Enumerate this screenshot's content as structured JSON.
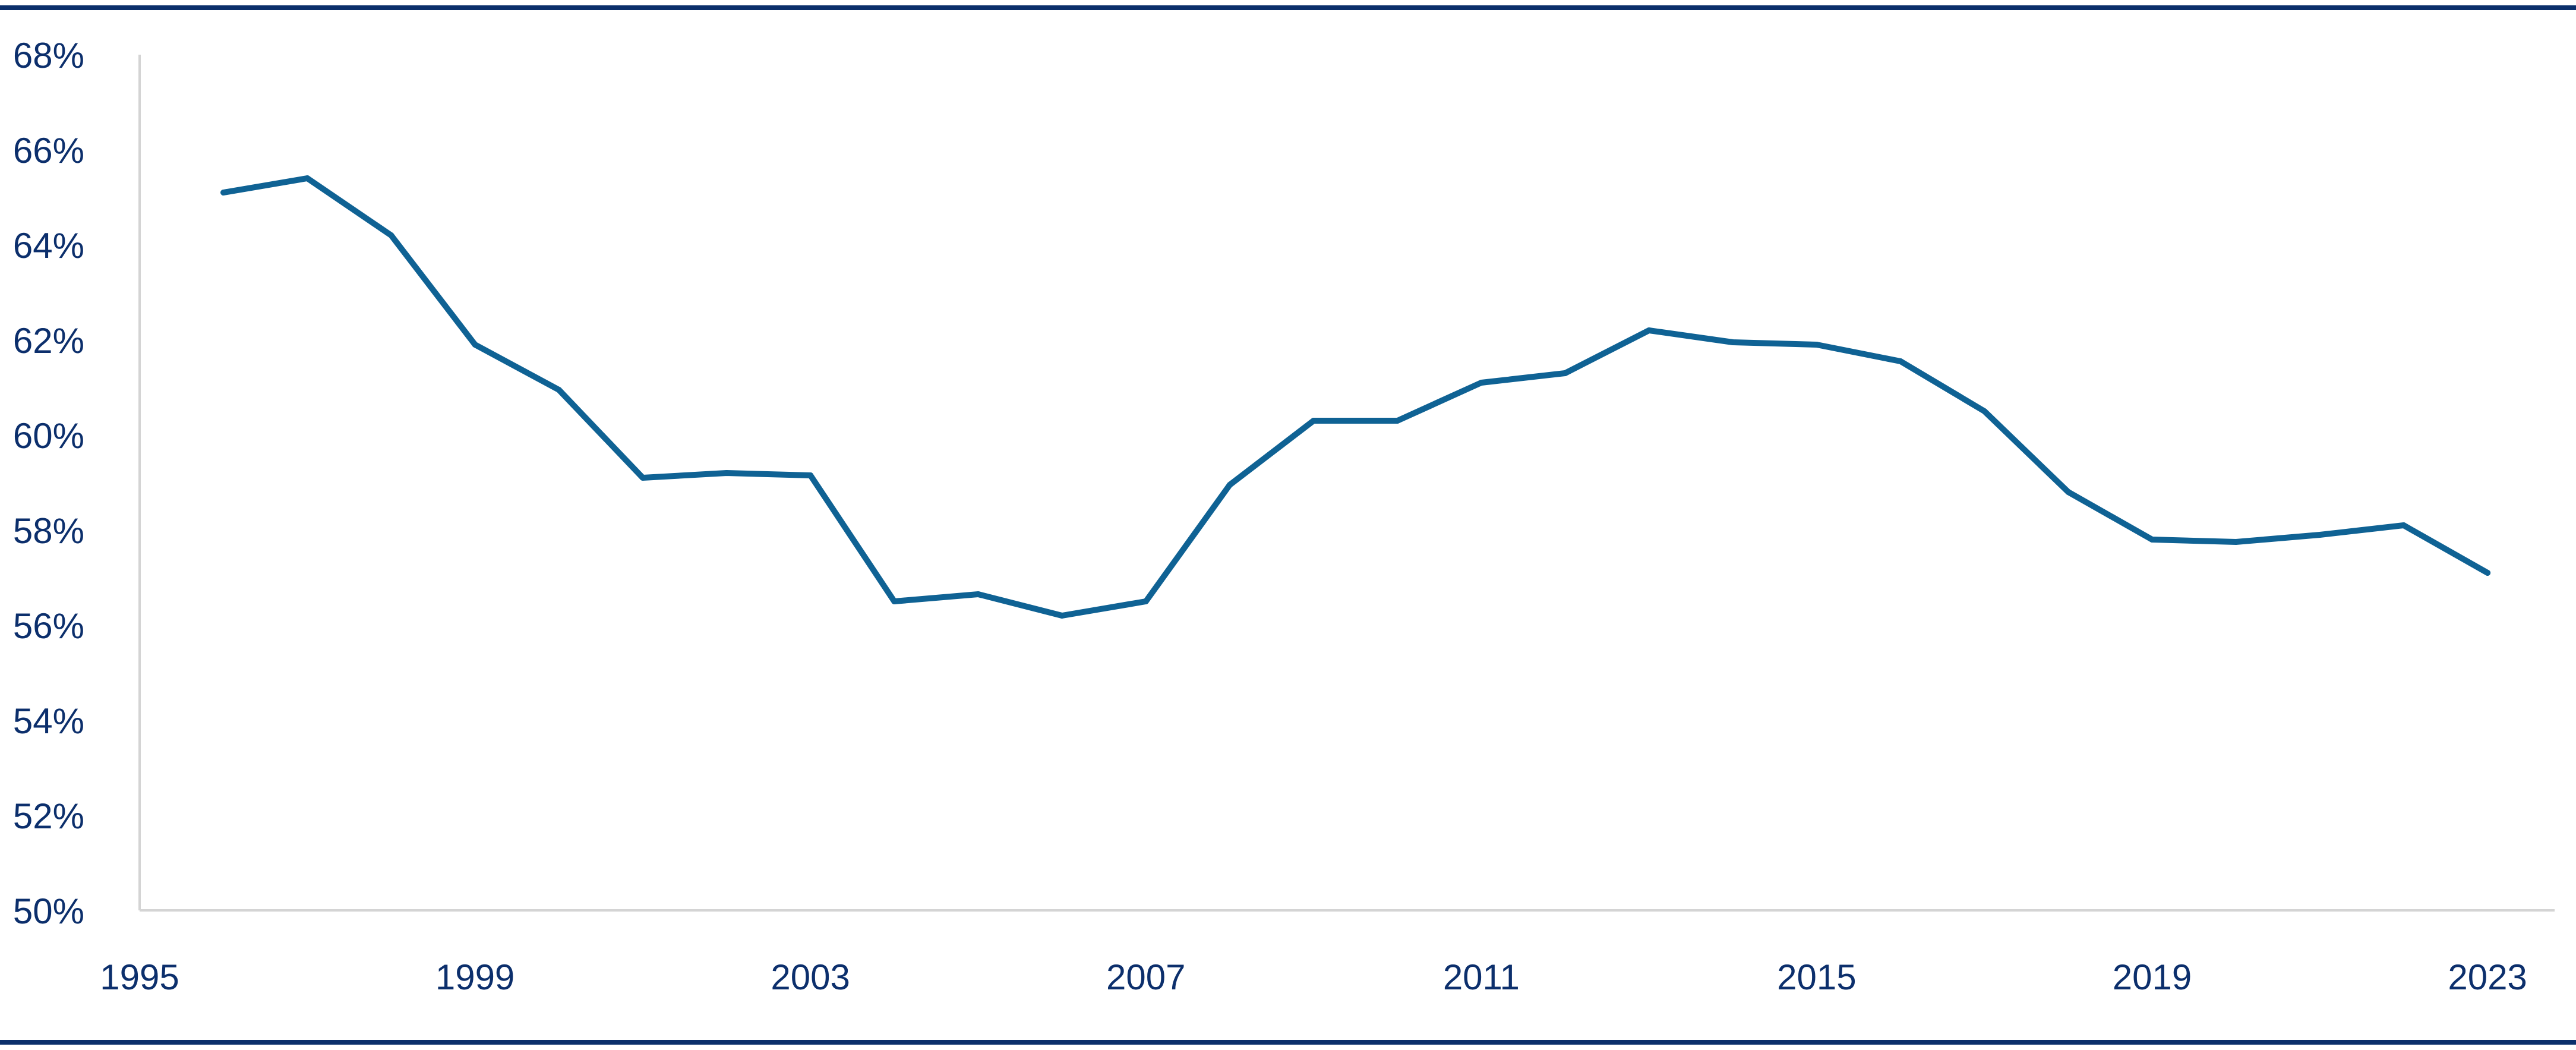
{
  "colors": {
    "rule": "#0b2f6b",
    "axis": "#d4d4d4",
    "line": "#0f6294",
    "tick_text": "#0c2f6c"
  },
  "chart_data": {
    "type": "line",
    "title": "",
    "xlabel": "",
    "ylabel": "",
    "x_ticks": [
      "1995",
      "1999",
      "2003",
      "2007",
      "2011",
      "2015",
      "2019",
      "2023"
    ],
    "y_ticks": [
      "50%",
      "52%",
      "54%",
      "56%",
      "58%",
      "60%",
      "62%",
      "64%",
      "66%",
      "68%"
    ],
    "xlim": [
      1995,
      2023.8
    ],
    "ylim": [
      50,
      68
    ],
    "grid": false,
    "legend": "none",
    "series": [
      {
        "x": [
          1996,
          1997,
          1998,
          1999,
          2000,
          2001,
          2002,
          2003,
          2004,
          2005,
          2006,
          2007,
          2008,
          2009,
          2010,
          2011,
          2012,
          2013,
          2014,
          2015,
          2016,
          2017,
          2018,
          2019,
          2020,
          2021,
          2022,
          2023
        ],
        "values": [
          65.1,
          65.4,
          64.2,
          61.9,
          60.95,
          59.1,
          59.2,
          59.15,
          56.5,
          56.65,
          56.2,
          56.5,
          58.95,
          60.3,
          60.3,
          61.1,
          61.3,
          62.2,
          61.95,
          61.9,
          61.55,
          60.5,
          58.8,
          57.8,
          57.75,
          57.9,
          58.1,
          57.1
        ]
      }
    ]
  }
}
